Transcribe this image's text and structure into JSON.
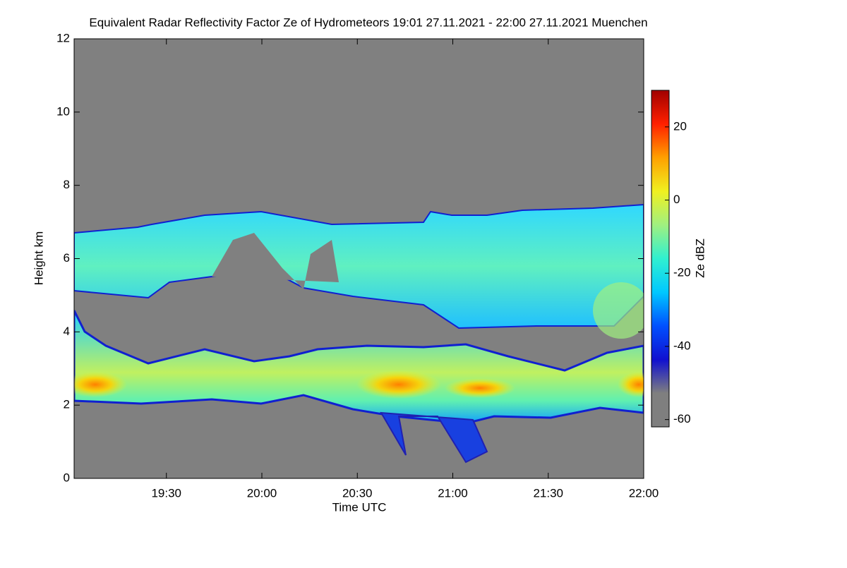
{
  "chart_data": {
    "type": "heatmap",
    "title": "Equivalent Radar Reflectivity Factor Ze of Hydrometeors   19:01 27.11.2021 - 22:00 27.11.2021 Muenchen",
    "x_label": "Time UTC",
    "y_label": "Height km",
    "xlim": [
      1141,
      1320
    ],
    "xticks": [
      {
        "value": 1170,
        "label": "19:30"
      },
      {
        "value": 1200,
        "label": "20:00"
      },
      {
        "value": 1230,
        "label": "20:30"
      },
      {
        "value": 1260,
        "label": "21:00"
      },
      {
        "value": 1290,
        "label": "21:30"
      },
      {
        "value": 1320,
        "label": "22:00"
      }
    ],
    "ylim": [
      0,
      12
    ],
    "yticks": [
      0,
      2,
      4,
      6,
      8,
      10,
      12
    ],
    "colorbar": {
      "label": "Ze dBZ",
      "lim": [
        -62,
        30
      ],
      "ticks": [
        -60,
        -40,
        -20,
        0,
        20
      ],
      "colormap": [
        "#7f7f7f",
        "#7f7f7f",
        "#1010d0",
        "#0050ff",
        "#00c8ff",
        "#30f0d0",
        "#a0f080",
        "#f0f020",
        "#ffa000",
        "#ff2000",
        "#a00000"
      ]
    },
    "background_color": "#808080"
  }
}
